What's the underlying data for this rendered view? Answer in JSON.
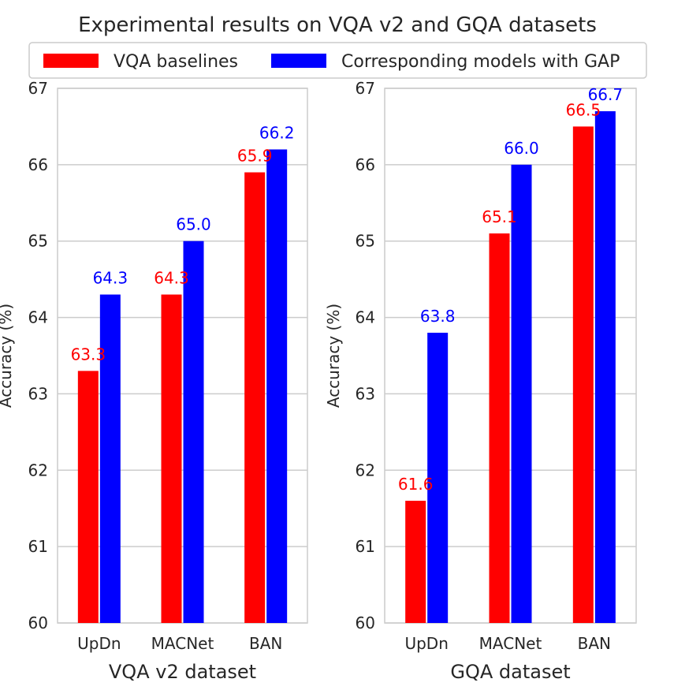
{
  "figure": {
    "title": "Experimental results on VQA v2 and GQA datasets",
    "legend": [
      {
        "label": "VQA baselines",
        "color": "#ff0000"
      },
      {
        "label": "Corresponding models with GAP",
        "color": "#0000ff"
      }
    ]
  },
  "chart_data": [
    {
      "type": "bar",
      "title": "",
      "xlabel": "VQA v2 dataset",
      "ylabel": "Accuracy (%)",
      "categories": [
        "UpDn",
        "MACNet",
        "BAN"
      ],
      "ylim": [
        60,
        67
      ],
      "yticks": [
        "60",
        "61",
        "62",
        "63",
        "64",
        "65",
        "66",
        "67"
      ],
      "grid": true,
      "series": [
        {
          "name": "VQA baselines",
          "color": "#ff0000",
          "values": [
            63.3,
            64.3,
            65.9
          ],
          "labels": [
            "63.3",
            "64.3",
            "65.9"
          ]
        },
        {
          "name": "Corresponding models with GAP",
          "color": "#0000ff",
          "values": [
            64.3,
            65.0,
            66.2
          ],
          "labels": [
            "64.3",
            "65.0",
            "66.2"
          ]
        }
      ]
    },
    {
      "type": "bar",
      "title": "",
      "xlabel": "GQA dataset",
      "ylabel": "Accuracy (%)",
      "categories": [
        "UpDn",
        "MACNet",
        "BAN"
      ],
      "ylim": [
        60,
        67
      ],
      "yticks": [
        "60",
        "61",
        "62",
        "63",
        "64",
        "65",
        "66",
        "67"
      ],
      "grid": true,
      "series": [
        {
          "name": "VQA baselines",
          "color": "#ff0000",
          "values": [
            61.6,
            65.1,
            66.5
          ],
          "labels": [
            "61.6",
            "65.1",
            "66.5"
          ]
        },
        {
          "name": "Corresponding models with GAP",
          "color": "#0000ff",
          "values": [
            63.8,
            66.0,
            66.7
          ],
          "labels": [
            "63.8",
            "66.0",
            "66.7"
          ]
        }
      ]
    }
  ]
}
